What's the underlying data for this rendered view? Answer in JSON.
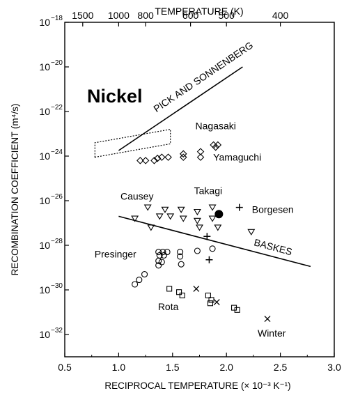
{
  "chart_data": {
    "type": "scatter",
    "title": "Nickel",
    "xlabel": "RECIPROCAL TEMPERATURE (× 10⁻³ K⁻¹)",
    "ylabel": "RECOMBINATION COEFFICIENT (m⁴/s)",
    "top_axis_label": "TEMPERATURE (K)",
    "xlim": [
      0.5,
      3.0
    ],
    "ylim_log10": [
      -33,
      -18
    ],
    "y_scale": "log",
    "grid": false,
    "x_ticks": [
      "0.5",
      "1.0",
      "1.5",
      "2.0",
      "2.5",
      "3.0"
    ],
    "y_ticks": [
      {
        "base": "10",
        "exp": "−18",
        "log": -18
      },
      {
        "base": "10",
        "exp": "−20",
        "log": -20
      },
      {
        "base": "10",
        "exp": "−22",
        "log": -22
      },
      {
        "base": "10",
        "exp": "−24",
        "log": -24
      },
      {
        "base": "10",
        "exp": "−26",
        "log": -26
      },
      {
        "base": "10",
        "exp": "−28",
        "log": -28
      },
      {
        "base": "10",
        "exp": "−30",
        "log": -30
      },
      {
        "base": "10",
        "exp": "−32",
        "log": -32
      }
    ],
    "top_ticks": [
      {
        "label": "1500",
        "temperature": 1500
      },
      {
        "label": "1000",
        "temperature": 1000
      },
      {
        "label": "800",
        "temperature": 800
      },
      {
        "label": "600",
        "temperature": 600
      },
      {
        "label": "500",
        "temperature": 500
      },
      {
        "label": "400",
        "temperature": 400
      }
    ],
    "lines": [
      {
        "label": "PICK AND SONNENBERG",
        "x": [
          1.0,
          2.15
        ],
        "log_y": [
          -23.75,
          -20.0
        ],
        "label_rotation": -34
      },
      {
        "label": "BASKES",
        "x": [
          1.0,
          2.78
        ],
        "log_y": [
          -26.7,
          -28.95
        ],
        "label_rotation": 15
      }
    ],
    "dotted_box": {
      "x": [
        0.78,
        1.48
      ],
      "log_y": [
        -24.05,
        -23.4,
        -22.8,
        -23.45
      ]
    },
    "series": [
      {
        "name": "Nagasaki",
        "marker": "diamond",
        "points": [
          [
            1.88,
            -23.5
          ],
          [
            1.92,
            -23.5
          ],
          [
            1.9,
            -23.6
          ]
        ]
      },
      {
        "name": "Yamaguchi",
        "marker": "diamond",
        "points": [
          [
            1.2,
            -24.2
          ],
          [
            1.25,
            -24.2
          ],
          [
            1.33,
            -24.2
          ],
          [
            1.36,
            -24.1
          ],
          [
            1.4,
            -24.05
          ],
          [
            1.46,
            -24.05
          ],
          [
            1.6,
            -24.05
          ],
          [
            1.6,
            -23.9
          ],
          [
            1.76,
            -24.05
          ],
          [
            1.76,
            -23.8
          ]
        ]
      },
      {
        "name": "Takagi",
        "marker": "filled-circle",
        "points": [
          [
            1.93,
            -26.6
          ]
        ]
      },
      {
        "name": "Borgesen",
        "marker": "plus",
        "points": [
          [
            2.12,
            -26.3
          ],
          [
            1.82,
            -27.6
          ],
          [
            1.84,
            -28.65
          ]
        ]
      },
      {
        "name": "Causey",
        "marker": "triangle-down",
        "points": [
          [
            1.27,
            -26.3
          ],
          [
            1.43,
            -26.4
          ],
          [
            1.58,
            -26.4
          ],
          [
            1.73,
            -26.5
          ],
          [
            1.87,
            -26.3
          ],
          [
            1.15,
            -26.8
          ],
          [
            1.38,
            -26.7
          ],
          [
            1.48,
            -26.7
          ],
          [
            1.6,
            -26.8
          ],
          [
            1.73,
            -26.9
          ],
          [
            1.87,
            -26.8
          ],
          [
            1.3,
            -27.2
          ],
          [
            1.75,
            -27.2
          ],
          [
            1.92,
            -27.2
          ],
          [
            2.23,
            -27.4
          ]
        ]
      },
      {
        "name": "Presinger",
        "marker": "circle",
        "points": [
          [
            1.37,
            -28.3
          ],
          [
            1.41,
            -28.3
          ],
          [
            1.45,
            -28.3
          ],
          [
            1.38,
            -28.45
          ],
          [
            1.42,
            -28.45
          ],
          [
            1.37,
            -28.7
          ],
          [
            1.57,
            -28.3
          ],
          [
            1.57,
            -28.5
          ],
          [
            1.73,
            -28.25
          ],
          [
            1.87,
            -28.15
          ],
          [
            1.37,
            -28.9
          ],
          [
            1.4,
            -28.75
          ],
          [
            1.58,
            -28.85
          ],
          [
            1.24,
            -29.3
          ],
          [
            1.19,
            -29.55
          ],
          [
            1.15,
            -29.75
          ]
        ]
      },
      {
        "name": "Rota",
        "marker": "square",
        "points": [
          [
            1.47,
            -29.95
          ],
          [
            1.56,
            -30.1
          ],
          [
            1.59,
            -30.25
          ],
          [
            1.83,
            -30.25
          ],
          [
            1.86,
            -30.45
          ],
          [
            1.85,
            -30.6
          ],
          [
            2.07,
            -30.8
          ],
          [
            2.1,
            -30.9
          ]
        ]
      },
      {
        "name": "Winter",
        "marker": "x",
        "points": [
          [
            1.72,
            -29.95
          ],
          [
            1.91,
            -30.55
          ],
          [
            2.38,
            -31.3
          ]
        ]
      }
    ],
    "series_labels": [
      {
        "name": "Nagasaki",
        "x": 1.9,
        "log_y": -22.8
      },
      {
        "name": "Yamaguchi",
        "x": 2.1,
        "log_y": -24.2
      },
      {
        "name": "Takagi",
        "x": 1.83,
        "log_y": -25.7
      },
      {
        "name": "Causey",
        "x": 1.17,
        "log_y": -25.95
      },
      {
        "name": "Borgesen",
        "x": 2.43,
        "log_y": -26.55
      },
      {
        "name": "Presinger",
        "x": 0.97,
        "log_y": -28.55
      },
      {
        "name": "Rota",
        "x": 1.46,
        "log_y": -30.9
      },
      {
        "name": "Winter",
        "x": 2.42,
        "log_y": -32.1
      }
    ]
  }
}
